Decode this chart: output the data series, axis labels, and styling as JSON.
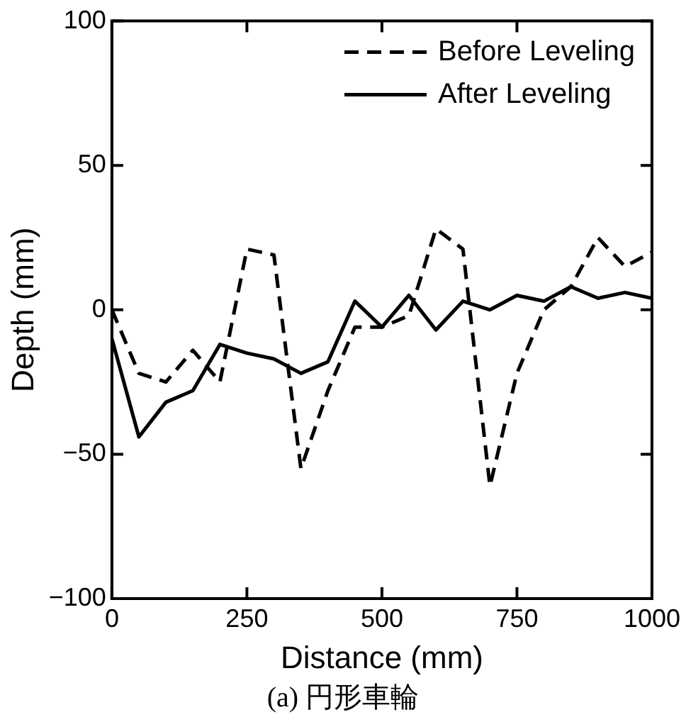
{
  "chart_data": {
    "type": "line",
    "xlabel": "Distance (mm)",
    "ylabel": "Depth (mm)",
    "annotations": [
      "(a) 円形車輪"
    ],
    "x": [
      0,
      50,
      100,
      150,
      200,
      250,
      300,
      350,
      400,
      450,
      500,
      550,
      600,
      650,
      700,
      750,
      800,
      850,
      900,
      950,
      1000
    ],
    "series": [
      {
        "name": "Before Leveling",
        "color": "#000000",
        "line_style": "dashed",
        "values": [
          0,
          -22,
          -25,
          -14,
          -25,
          21,
          19,
          -55,
          -28,
          -6,
          -6,
          -2,
          28,
          21,
          -61,
          -22,
          0,
          8,
          25,
          15,
          20
        ]
      },
      {
        "name": "After Leveling",
        "color": "#000000",
        "line_style": "solid",
        "values": [
          -10,
          -44,
          -32,
          -28,
          -12,
          -15,
          -17,
          -22,
          -18,
          3,
          -6,
          5,
          -7,
          3,
          0,
          5,
          3,
          8,
          4,
          6,
          4
        ]
      }
    ],
    "xlim": [
      0,
      1000
    ],
    "xticks": [
      0,
      250,
      500,
      750,
      1000
    ],
    "ylim": [
      -100,
      100
    ],
    "yticks": [
      {
        "value": -100,
        "label": "−100"
      },
      {
        "value": -50,
        "label": "−50"
      },
      0,
      50,
      100
    ],
    "grid": false,
    "legend": "top right",
    "marker": "none"
  }
}
